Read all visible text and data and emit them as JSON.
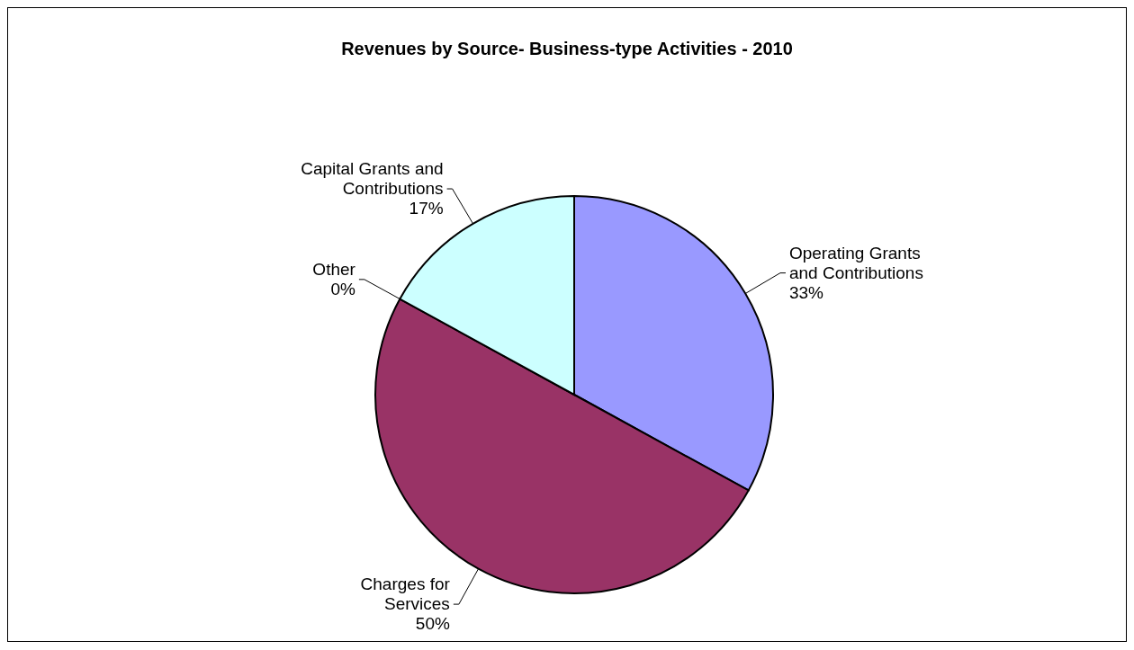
{
  "chart_data": {
    "type": "pie",
    "title": "Revenues by Source- Business-type Activities - 2010",
    "categories": [
      "Operating Grants and Contributions",
      "Charges for Services",
      "Other",
      "Capital Grants and Contributions"
    ],
    "values": [
      33,
      50,
      0,
      17
    ],
    "colors": [
      "#9999ff",
      "#993366",
      "#ffffcc",
      "#ccffff"
    ],
    "value_labels": [
      "33%",
      "50%",
      "0%",
      "17%"
    ]
  }
}
